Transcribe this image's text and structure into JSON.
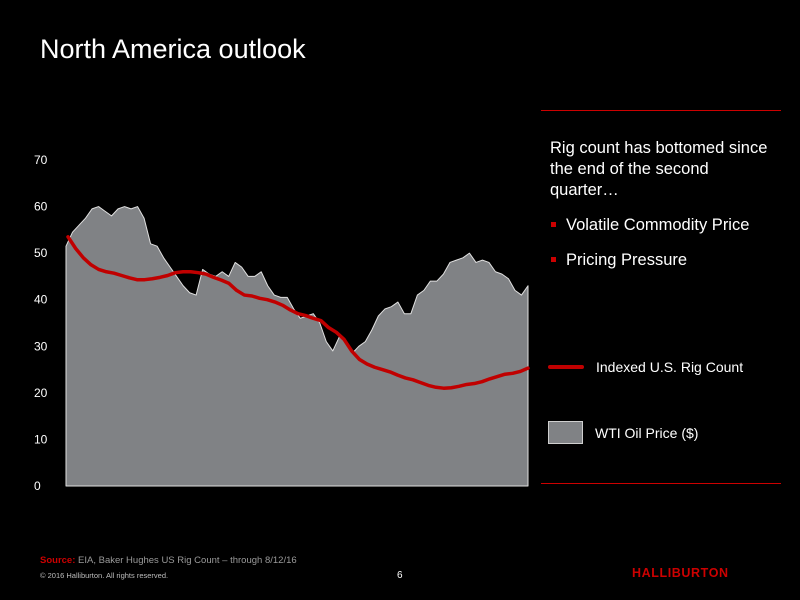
{
  "slide": {
    "title": "North America outlook",
    "page_number": "6"
  },
  "side_panel": {
    "headline": "Rig count has bottomed since the end of the second quarter…",
    "bullets": [
      "Volatile Commodity Price",
      "Pricing Pressure"
    ],
    "bullet_color": "#cc0000",
    "rule_color": "#cc0000"
  },
  "footer": {
    "source_key": "Source:",
    "source_text": " EIA, Baker Hughes US Rig Count – through 8/12/16",
    "copyright": "© 2016 Halliburton. All rights reserved.",
    "logo_text": "HALLIBURTON",
    "logo_color": "#cc0000"
  },
  "chart_data": {
    "type": "area",
    "title": "",
    "xlabel": "",
    "ylabel": "",
    "ylim": [
      0,
      70
    ],
    "yticks": [
      0,
      10,
      20,
      30,
      40,
      50,
      60,
      70
    ],
    "grid": false,
    "legend_placement": "right",
    "colors": {
      "area_fill": "#808285",
      "area_stroke": "#e0e0e0",
      "line": "#c00000"
    },
    "series": [
      {
        "name": "WTI Oil Price ($)",
        "style": "area",
        "values": [
          51.5,
          54.5,
          56,
          57.5,
          59.5,
          60,
          59,
          58,
          59.5,
          60,
          59.5,
          60,
          57.5,
          52,
          51.5,
          49,
          47,
          45,
          43,
          41.5,
          41,
          46.5,
          45.5,
          45,
          46,
          45,
          48,
          47,
          45,
          45,
          46,
          43,
          41,
          40.5,
          40.5,
          38,
          36,
          36.5,
          37,
          35,
          31,
          29,
          32,
          31,
          28.5,
          30,
          31,
          33.5,
          36.5,
          38,
          38.5,
          39.5,
          37,
          37,
          41,
          42,
          44,
          44,
          45.5,
          48,
          48.5,
          49,
          50,
          48,
          48.5,
          48,
          46,
          45.5,
          44.5,
          42,
          41,
          43
        ]
      },
      {
        "name": "Indexed U.S. Rig Count",
        "style": "line",
        "values": [
          53.5,
          51,
          49,
          47.5,
          46.5,
          46,
          45.7,
          45.2,
          44.7,
          44.3,
          44.3,
          44.5,
          44.8,
          45.2,
          45.8,
          46,
          46,
          45.8,
          45.5,
          44.8,
          44.2,
          43.5,
          42,
          41,
          40.8,
          40.3,
          40,
          39.5,
          38.8,
          37.8,
          37,
          36.6,
          36,
          35.5,
          34,
          33,
          31.5,
          29,
          27.2,
          26.2,
          25.5,
          25,
          24.5,
          23.8,
          23.2,
          22.8,
          22.2,
          21.6,
          21.2,
          21,
          21.1,
          21.4,
          21.8,
          22,
          22.4,
          23,
          23.5,
          24,
          24.2,
          24.6,
          25.3
        ]
      }
    ]
  }
}
